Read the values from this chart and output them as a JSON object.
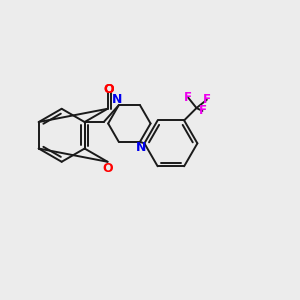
{
  "background_color": "#ececec",
  "bond_color": "#1a1a1a",
  "atom_colors": {
    "O": "#ff0000",
    "N": "#0000ee",
    "F": "#ee00ee",
    "C": "#1a1a1a"
  },
  "figsize": [
    3.0,
    3.0
  ],
  "dpi": 100,
  "lw": 1.4,
  "xlim": [
    0,
    10
  ],
  "ylim": [
    0,
    10
  ]
}
